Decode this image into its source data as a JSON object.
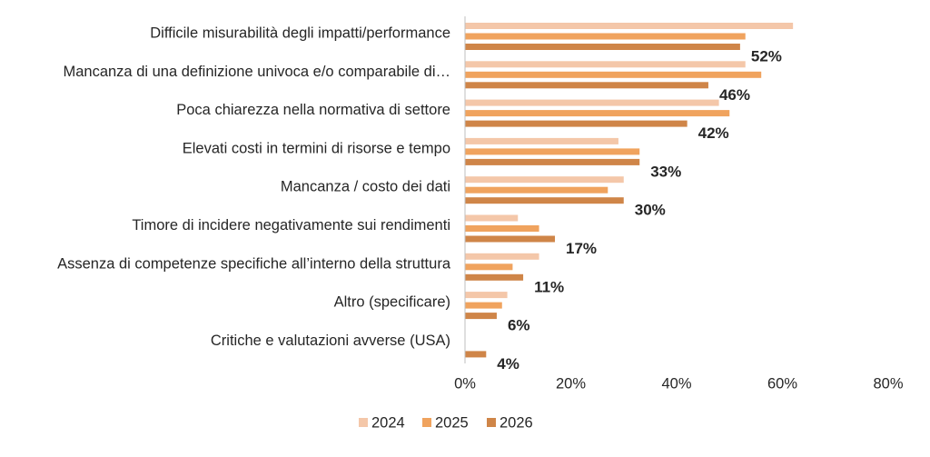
{
  "chart_data": {
    "type": "bar",
    "orientation": "horizontal",
    "categories": [
      "Difficile misurabilità degli impatti/performance",
      "Mancanza di una definizione univoca e/o comparabile di…",
      "Poca chiarezza nella normativa di settore",
      "Elevati costi in termini di risorse e tempo",
      "Mancanza / costo dei dati",
      "Timore di incidere negativamente sui rendimenti",
      "Assenza di competenze specifiche all’interno della struttura",
      "Altro (specificare)",
      "Critiche e valutazioni avverse (USA)"
    ],
    "series": [
      {
        "name": "2024",
        "color": "#f4c7a9",
        "values": [
          62,
          53,
          48,
          29,
          30,
          10,
          14,
          8,
          null
        ]
      },
      {
        "name": "2025",
        "color": "#f0a35e",
        "values": [
          53,
          56,
          50,
          33,
          27,
          14,
          9,
          7,
          null
        ]
      },
      {
        "name": "2026",
        "color": "#cf8548",
        "values": [
          52,
          46,
          42,
          33,
          30,
          17,
          11,
          6,
          4
        ]
      }
    ],
    "data_labels": [
      "52%",
      "46%",
      "42%",
      "33%",
      "30%",
      "17%",
      "11%",
      "6%",
      "4%"
    ],
    "xlim": [
      0,
      80
    ],
    "xticks": [
      0,
      20,
      40,
      60,
      80
    ],
    "xtick_labels": [
      "0%",
      "20%",
      "40%",
      "60%",
      "80%"
    ],
    "legend_position": "bottom",
    "grid": false
  }
}
